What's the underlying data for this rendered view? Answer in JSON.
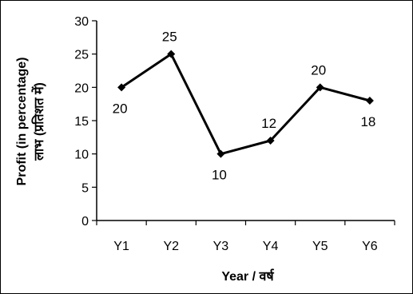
{
  "chart_data": {
    "type": "line",
    "categories": [
      "Y1",
      "Y2",
      "Y3",
      "Y4",
      "Y5",
      "Y6"
    ],
    "series": [
      {
        "values": [
          20,
          25,
          10,
          12,
          20,
          18
        ]
      }
    ],
    "data_labels": [
      "20",
      "25",
      "10",
      "12",
      "20",
      "18"
    ],
    "ylabel_line1": "Profit (in percentage)",
    "ylabel_line2": "लाभ (प्रतिशत में)",
    "xlabel": "Year / वर्ष",
    "ylim": [
      0,
      30
    ],
    "yticks": [
      "0",
      "5",
      "10",
      "15",
      "20",
      "25",
      "30"
    ],
    "grid": false,
    "marker": "diamond",
    "line_color": "#000000"
  }
}
